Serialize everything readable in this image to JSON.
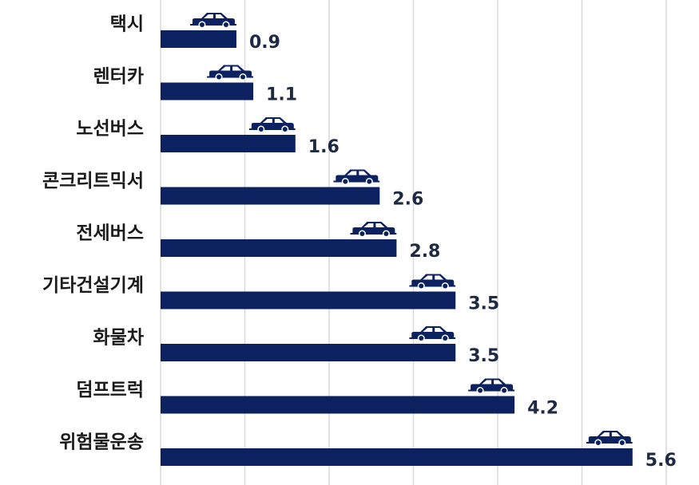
{
  "chart_data": {
    "type": "bar",
    "orientation": "horizontal",
    "categories": [
      "택시",
      "렌터카",
      "노선버스",
      "콘크리트믹서",
      "전세버스",
      "기타건설기계",
      "화물차",
      "덤프트럭",
      "위험물운송"
    ],
    "values": [
      0.9,
      1.1,
      1.6,
      2.6,
      2.8,
      3.5,
      3.5,
      4.2,
      5.6
    ],
    "value_labels": [
      "0.9",
      "1.1",
      "1.6",
      "2.6",
      "2.8",
      "3.5",
      "3.5",
      "4.2",
      "5.6"
    ],
    "title": "",
    "xlabel": "",
    "ylabel": "",
    "xlim": [
      0,
      6.4
    ],
    "grid": "vertical",
    "legend": "none",
    "marker_icon": "car-icon",
    "colors": {
      "bar": "#0c2260",
      "icon": "#0c2260",
      "grid": "#d9d9d9",
      "label": "#1b1b1b"
    }
  }
}
